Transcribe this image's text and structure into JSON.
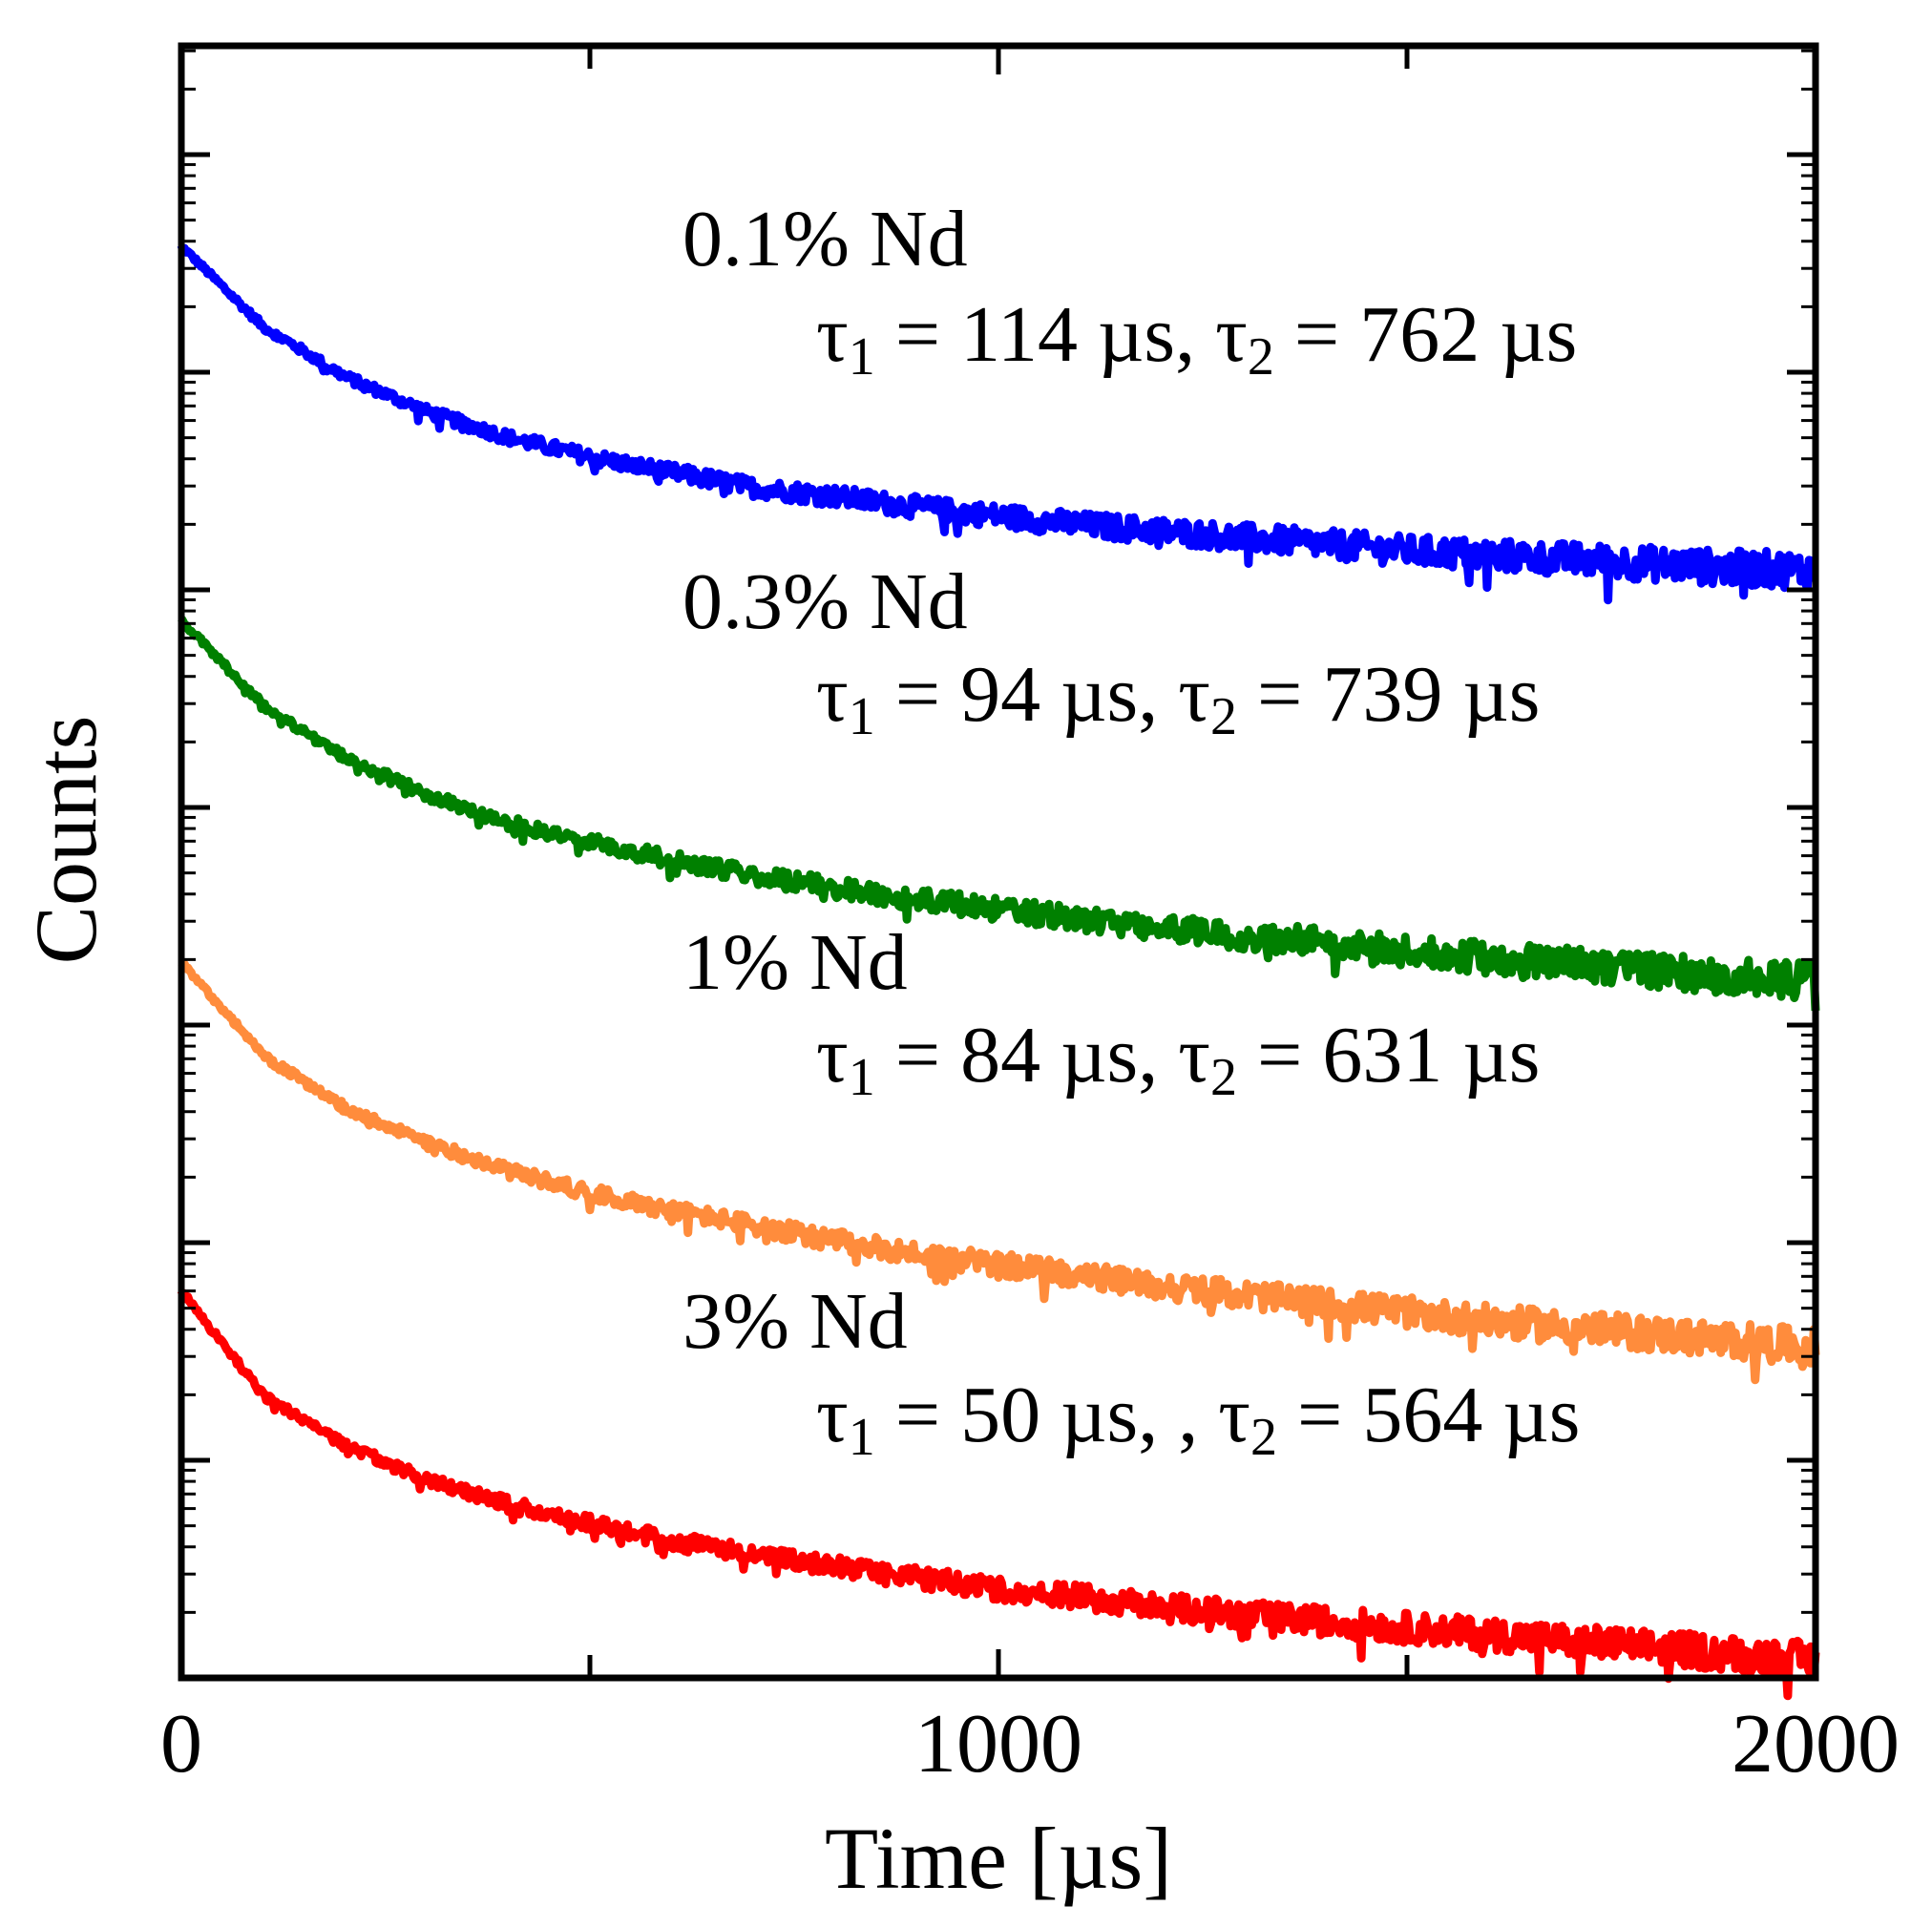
{
  "chart_data": {
    "type": "line",
    "title": "",
    "xlabel": "Time [µs]",
    "ylabel": "Counts",
    "y_scale": "log",
    "y_tick_labels_shown": false,
    "xlim": [
      0,
      2000
    ],
    "ylim_decades_log10": [
      0,
      7.5
    ],
    "grid": false,
    "x_ticks": [
      0,
      1000,
      2000
    ],
    "x_tick_labels": [
      "0",
      "1000",
      "2000"
    ],
    "series": [
      {
        "name": "0.1% Nd",
        "color": "#0000ff",
        "tau1": "114 µs",
        "tau2": "762 µs",
        "x": [
          0,
          100,
          200,
          300,
          400,
          500,
          600,
          700,
          800,
          900,
          1000,
          1100,
          1200,
          1300,
          1400,
          1500,
          1600,
          1700,
          1800,
          1900,
          2000
        ],
        "log10_counts": [
          6.58,
          6.21,
          5.98,
          5.82,
          5.7,
          5.61,
          5.54,
          5.47,
          5.43,
          5.38,
          5.34,
          5.3,
          5.27,
          5.24,
          5.21,
          5.18,
          5.16,
          5.14,
          5.12,
          5.1,
          5.09
        ]
      },
      {
        "name": "0.3% Nd",
        "color": "#008000",
        "tau1": "94 µs",
        "tau2": "739 µs",
        "x": [
          0,
          100,
          200,
          300,
          400,
          500,
          600,
          700,
          800,
          900,
          1000,
          1100,
          1200,
          1300,
          1400,
          1500,
          1600,
          1700,
          1800,
          1900,
          2000
        ],
        "log10_counts": [
          4.86,
          4.47,
          4.23,
          4.06,
          3.93,
          3.84,
          3.76,
          3.69,
          3.63,
          3.58,
          3.53,
          3.49,
          3.45,
          3.41,
          3.38,
          3.34,
          3.31,
          3.28,
          3.25,
          3.22,
          3.2
        ]
      },
      {
        "name": "1% Nd",
        "color": "#ff8c3c",
        "tau1": "84 µs",
        "tau2": "631 µs",
        "x": [
          0,
          100,
          200,
          300,
          400,
          500,
          600,
          700,
          800,
          900,
          1000,
          1100,
          1200,
          1300,
          1400,
          1500,
          1600,
          1700,
          1800,
          1900,
          2000
        ],
        "log10_counts": [
          3.29,
          2.86,
          2.62,
          2.46,
          2.33,
          2.23,
          2.15,
          2.08,
          2.01,
          1.95,
          1.9,
          1.85,
          1.8,
          1.76,
          1.72,
          1.68,
          1.64,
          1.61,
          1.58,
          1.55,
          1.52
        ]
      },
      {
        "name": "3% Nd",
        "color": "#ff0000",
        "tau1": "50 µs, ",
        "tau2": "564 µs",
        "x": [
          0,
          100,
          200,
          300,
          400,
          500,
          600,
          700,
          800,
          900,
          1000,
          1100,
          1200,
          1300,
          1400,
          1500,
          1600,
          1700,
          1800,
          1900,
          2000
        ],
        "log10_counts": [
          1.78,
          1.3,
          1.07,
          0.91,
          0.8,
          0.71,
          0.63,
          0.57,
          0.51,
          0.46,
          0.41,
          0.37,
          0.33,
          0.29,
          0.26,
          0.23,
          0.2,
          0.17,
          0.14,
          0.11,
          0.08
        ]
      }
    ],
    "annotations": [
      {
        "label": "0.1% Nd",
        "tau1_label": "τ",
        "tau1_sub": "1",
        "tau1_value": "114 µs,",
        "tau2_label": "τ",
        "tau2_sub": "2",
        "tau2_value": "762 µs"
      },
      {
        "label": "0.3% Nd",
        "tau1_label": "τ",
        "tau1_sub": "1",
        "tau1_value": "94 µs,",
        "tau2_label": "τ",
        "tau2_sub": "2",
        "tau2_value": "739 µs"
      },
      {
        "label": "1% Nd",
        "tau1_label": "τ",
        "tau1_sub": "1",
        "tau1_value": "84 µs,",
        "tau2_label": "τ",
        "tau2_sub": "2",
        "tau2_value": "631 µs"
      },
      {
        "label": "3% Nd",
        "tau1_label": "τ",
        "tau1_sub": "1",
        "tau1_value": "50 µs, ,",
        "tau2_label": "τ",
        "tau2_sub": "2",
        "tau2_value": "564 µs"
      }
    ]
  }
}
